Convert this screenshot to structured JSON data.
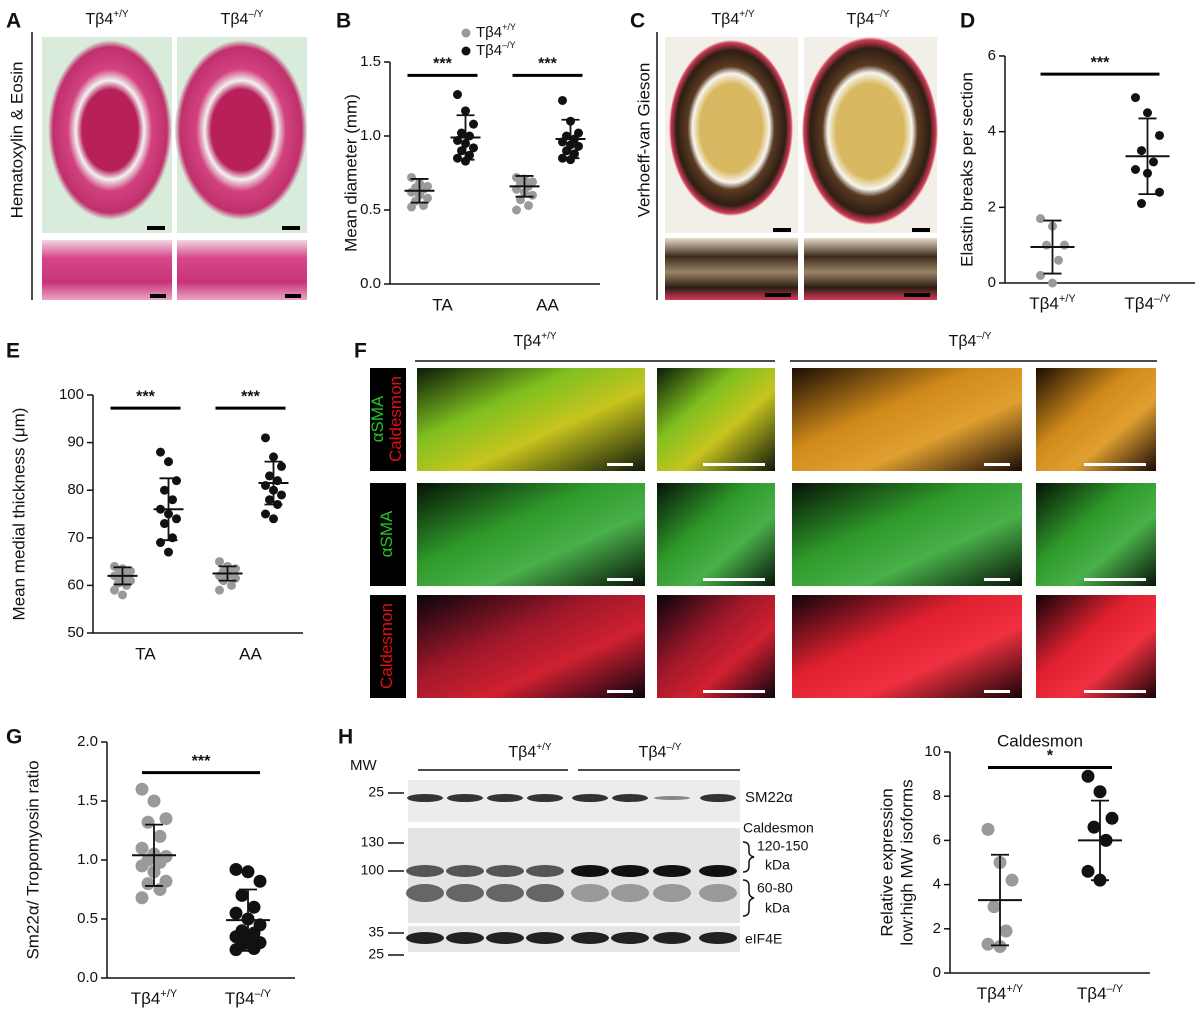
{
  "panel_labels": [
    "A",
    "B",
    "C",
    "D",
    "E",
    "F",
    "G",
    "H"
  ],
  "histology": {
    "genotypes": [
      {
        "base": "Tβ4",
        "sup": "+/Y"
      },
      {
        "base": "Tβ4",
        "sup": "–/Y"
      }
    ],
    "he_stain": "Hematoxylin & Eosin",
    "vvg_stain": "Verhoeff-van Gieson"
  },
  "immunofluorescence": {
    "genotypes": [
      {
        "base": "Tβ4",
        "sup": "+/Y"
      },
      {
        "base": "Tβ4",
        "sup": "–/Y"
      }
    ],
    "row_labels": [
      [
        "αSMA",
        "Caldesmon"
      ],
      [
        "αSMA"
      ],
      [
        "Caldesmon"
      ]
    ]
  },
  "western_blot": {
    "genotypes": [
      {
        "base": "Tβ4",
        "sup": "+/Y"
      },
      {
        "base": "Tβ4",
        "sup": "–/Y"
      }
    ],
    "mw_header": "MW",
    "mw_markers": [
      "25",
      "130",
      "100",
      "35",
      "25"
    ],
    "band_labels": {
      "sm22": "SM22α",
      "caldesmon": "Caldesmon",
      "high": [
        "120-150",
        "kDa"
      ],
      "low": [
        "60-80",
        "kDa"
      ],
      "eif4e": "eIF4E"
    }
  },
  "chart_data": [
    {
      "type": "strip",
      "ylabel": [
        "Mean diameter (mm)"
      ],
      "categories": [
        "TA",
        "AA"
      ],
      "series": [
        {
          "name": {
            "base": "Tβ4",
            "sup": "+/Y"
          },
          "color": "#9a9a9a",
          "values": [
            [
              0.72,
              0.68,
              0.66,
              0.65,
              0.64,
              0.62,
              0.61,
              0.58,
              0.56,
              0.53,
              0.52,
              0.6
            ],
            [
              0.72,
              0.71,
              0.69,
              0.68,
              0.66,
              0.64,
              0.62,
              0.6,
              0.57,
              0.53,
              0.5
            ]
          ],
          "mean": [
            0.63,
            0.66
          ],
          "sd": [
            0.08,
            0.07
          ]
        },
        {
          "name": {
            "base": "Tβ4",
            "sup": "–/Y"
          },
          "color": "#111111",
          "values": [
            [
              1.28,
              1.17,
              1.08,
              1.02,
              1.0,
              0.97,
              0.95,
              0.92,
              0.9,
              0.87,
              0.85,
              0.83
            ],
            [
              1.24,
              1.1,
              1.02,
              1.0,
              0.98,
              0.96,
              0.94,
              0.93,
              0.9,
              0.88,
              0.85,
              0.84
            ]
          ],
          "mean": [
            0.99,
            0.98
          ],
          "sd": [
            0.15,
            0.13
          ]
        }
      ],
      "significance": [
        "***",
        "***"
      ],
      "ylim": [
        0,
        1.5
      ],
      "yticks": [
        {
          "value": 0,
          "label": "0.0"
        },
        {
          "value": 0.5,
          "label": "0.5"
        },
        {
          "value": 1,
          "label": "1.0"
        },
        {
          "value": 1.5,
          "label": "1.5"
        }
      ],
      "legend": true
    },
    {
      "type": "strip",
      "ylabel": [
        "Elastin breaks per section"
      ],
      "categories": [
        {
          "base": "Tβ4",
          "sup": "+/Y"
        },
        {
          "base": "Tβ4",
          "sup": "–/Y"
        }
      ],
      "series": [
        {
          "colors": [
            "#9a9a9a",
            "#111111"
          ],
          "values": [
            [
              1.7,
              1.5,
              1,
              1,
              0.6,
              0.2,
              0
            ],
            [
              4.9,
              4.5,
              3.9,
              3.5,
              3.2,
              3,
              2.9,
              2.4,
              2.1
            ]
          ],
          "mean": [
            0.95,
            3.35
          ],
          "sd": [
            0.7,
            1.0
          ]
        }
      ],
      "significance": "***",
      "ylim": [
        0,
        6
      ],
      "yticks": [
        0,
        2,
        4,
        6
      ]
    },
    {
      "type": "strip",
      "ylabel": [
        "Mean medial thickness (μm)"
      ],
      "categories": [
        "TA",
        "AA"
      ],
      "series": [
        {
          "color": "#9a9a9a",
          "values": [
            [
              64,
              63.5,
              63,
              62.5,
              62,
              62,
              61.5,
              61,
              60.5,
              60,
              59,
              58
            ],
            [
              65,
              64,
              63.5,
              63,
              62.5,
              62,
              62,
              61.5,
              61,
              60,
              59
            ]
          ],
          "mean": [
            62,
            62.5
          ],
          "sd": [
            1.8,
            1.5
          ]
        },
        {
          "color": "#111111",
          "values": [
            [
              88,
              86,
              82,
              80,
              78,
              76,
              75,
              74,
              73,
              70,
              69,
              67
            ],
            [
              91,
              87,
              85,
              83,
              82,
              81,
              80,
              79,
              78,
              77,
              75,
              74
            ]
          ],
          "mean": [
            76,
            81.5
          ],
          "sd": [
            6.5,
            4.5
          ]
        }
      ],
      "significance": [
        "***",
        "***"
      ],
      "ylim": [
        50,
        100
      ],
      "yticks": [
        50,
        60,
        70,
        80,
        90,
        100
      ]
    },
    {
      "type": "strip",
      "ylabel": [
        "Sm22α/ Tropomyosin ratio"
      ],
      "categories": [
        {
          "base": "Tβ4",
          "sup": "+/Y"
        },
        {
          "base": "Tβ4",
          "sup": "–/Y"
        }
      ],
      "series": [
        {
          "colors": [
            "#9a9a9a",
            "#111111"
          ],
          "values": [
            [
              1.6,
              1.5,
              1.35,
              1.32,
              1.2,
              1.1,
              1.05,
              1.03,
              1.0,
              0.98,
              0.95,
              0.9,
              0.82,
              0.8,
              0.75,
              0.68
            ],
            [
              0.92,
              0.9,
              0.82,
              0.7,
              0.6,
              0.55,
              0.5,
              0.45,
              0.4,
              0.38,
              0.35,
              0.32,
              0.3,
              0.28,
              0.25,
              0.24
            ]
          ],
          "mean": [
            1.04,
            0.49
          ],
          "sd": [
            0.26,
            0.26
          ]
        }
      ],
      "significance": "***",
      "ylim": [
        0,
        2
      ],
      "yticks": [
        {
          "value": 0,
          "label": "0.0"
        },
        {
          "value": 0.5,
          "label": "0.5"
        },
        {
          "value": 1,
          "label": "1.0"
        },
        {
          "value": 1.5,
          "label": "1.5"
        },
        {
          "value": 2,
          "label": "2.0"
        }
      ]
    },
    {
      "type": "strip",
      "title": "Caldesmon",
      "ylabel": [
        "Relative expression",
        "low:high MW isoforms"
      ],
      "categories": [
        {
          "base": "Tβ4",
          "sup": "+/Y"
        },
        {
          "base": "Tβ4",
          "sup": "–/Y"
        }
      ],
      "series": [
        {
          "colors": [
            "#9a9a9a",
            "#111111"
          ],
          "values": [
            [
              6.5,
              5,
              4.2,
              3,
              1.9,
              1.3,
              1.2
            ],
            [
              8.9,
              8.2,
              7,
              6.6,
              6,
              4.6,
              4.2
            ]
          ],
          "mean": [
            3.3,
            6.0
          ],
          "sd": [
            2.05,
            1.8
          ]
        }
      ],
      "significance": "*",
      "ylim": [
        0,
        10
      ],
      "yticks": [
        0,
        2,
        4,
        6,
        8,
        10
      ]
    }
  ]
}
